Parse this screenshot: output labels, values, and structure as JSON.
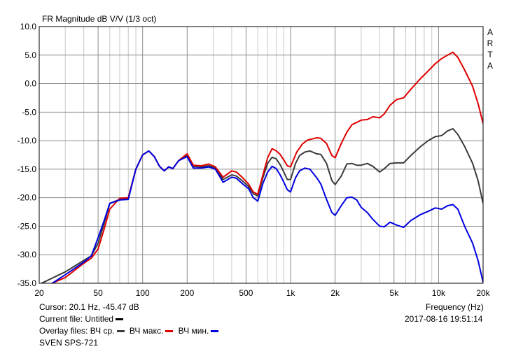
{
  "chart_data": {
    "type": "line",
    "title": "FR Magnitude dB V/V (1/3 oct)",
    "side_label": [
      "A",
      "R",
      "T",
      "A"
    ],
    "x_scale": "log",
    "xlim": [
      20,
      20000
    ],
    "ylim": [
      -35,
      10
    ],
    "grid": true,
    "x_ticks": [
      {
        "v": 20,
        "label": "20"
      },
      {
        "v": 50,
        "label": "50"
      },
      {
        "v": 100,
        "label": "100"
      },
      {
        "v": 200,
        "label": "200"
      },
      {
        "v": 500,
        "label": "500"
      },
      {
        "v": 1000,
        "label": "1k"
      },
      {
        "v": 2000,
        "label": "2k"
      },
      {
        "v": 5000,
        "label": "5k"
      },
      {
        "v": 10000,
        "label": "10k"
      },
      {
        "v": 20000,
        "label": "20k"
      }
    ],
    "y_ticks": [
      {
        "v": 10,
        "label": "10.0"
      },
      {
        "v": 5,
        "label": "5.0"
      },
      {
        "v": 0,
        "label": "0.0"
      },
      {
        "v": -5,
        "label": "-5.0"
      },
      {
        "v": -10,
        "label": "-10.0"
      },
      {
        "v": -15,
        "label": "-15.0"
      },
      {
        "v": -20,
        "label": "-20.0"
      },
      {
        "v": -25,
        "label": "-25.0"
      },
      {
        "v": -30,
        "label": "-30.0"
      },
      {
        "v": -35,
        "label": "-35.0"
      }
    ],
    "series": [
      {
        "name": "ВЧ ср.",
        "color": "#3c3c3c",
        "points": [
          [
            20,
            -35.2
          ],
          [
            30,
            -33
          ],
          [
            40,
            -31
          ],
          [
            45,
            -30.2
          ],
          [
            50,
            -28
          ],
          [
            55,
            -24.5
          ],
          [
            60,
            -21
          ],
          [
            70,
            -20.3
          ],
          [
            80,
            -20.1
          ],
          [
            90,
            -15
          ],
          [
            100,
            -12.5
          ],
          [
            110,
            -11.8
          ],
          [
            120,
            -12.8
          ],
          [
            130,
            -14.5
          ],
          [
            140,
            -15.3
          ],
          [
            150,
            -14.6
          ],
          [
            160,
            -14.9
          ],
          [
            175,
            -13.5
          ],
          [
            200,
            -12.6
          ],
          [
            220,
            -14.5
          ],
          [
            250,
            -14.6
          ],
          [
            280,
            -14.4
          ],
          [
            310,
            -14.8
          ],
          [
            350,
            -16.8
          ],
          [
            400,
            -16
          ],
          [
            430,
            -16.2
          ],
          [
            470,
            -17
          ],
          [
            520,
            -18
          ],
          [
            560,
            -19.3
          ],
          [
            600,
            -19.7
          ],
          [
            650,
            -16.5
          ],
          [
            700,
            -14
          ],
          [
            750,
            -12.9
          ],
          [
            800,
            -13.2
          ],
          [
            850,
            -14.2
          ],
          [
            900,
            -15.5
          ],
          [
            950,
            -16.8
          ],
          [
            1000,
            -16.8
          ],
          [
            1080,
            -14
          ],
          [
            1150,
            -12.6
          ],
          [
            1250,
            -12
          ],
          [
            1350,
            -11.8
          ],
          [
            1500,
            -12.3
          ],
          [
            1600,
            -12.4
          ],
          [
            1750,
            -14
          ],
          [
            1900,
            -17
          ],
          [
            2000,
            -17.7
          ],
          [
            2200,
            -16.2
          ],
          [
            2400,
            -14.1
          ],
          [
            2600,
            -14
          ],
          [
            2800,
            -14.3
          ],
          [
            3000,
            -14.3
          ],
          [
            3300,
            -14
          ],
          [
            3600,
            -14.5
          ],
          [
            4000,
            -15.5
          ],
          [
            4300,
            -14.9
          ],
          [
            4700,
            -14
          ],
          [
            5200,
            -13.9
          ],
          [
            5800,
            -13.9
          ],
          [
            6500,
            -12.6
          ],
          [
            7500,
            -11.1
          ],
          [
            8500,
            -10
          ],
          [
            9500,
            -9.3
          ],
          [
            10500,
            -9.1
          ],
          [
            11500,
            -8.3
          ],
          [
            12500,
            -7.9
          ],
          [
            13500,
            -8.9
          ],
          [
            15000,
            -11
          ],
          [
            17000,
            -14
          ],
          [
            18500,
            -17
          ],
          [
            20000,
            -21
          ]
        ]
      },
      {
        "name": "ВЧ макс.",
        "color": "#e00000",
        "points": [
          [
            20,
            -36
          ],
          [
            30,
            -34
          ],
          [
            40,
            -31.5
          ],
          [
            45,
            -30.6
          ],
          [
            50,
            -29
          ],
          [
            55,
            -25.5
          ],
          [
            60,
            -22
          ],
          [
            70,
            -20.1
          ],
          [
            80,
            -20
          ],
          [
            90,
            -15
          ],
          [
            100,
            -12.5
          ],
          [
            110,
            -11.8
          ],
          [
            120,
            -12.8
          ],
          [
            130,
            -14.5
          ],
          [
            140,
            -15.3
          ],
          [
            150,
            -14.6
          ],
          [
            160,
            -14.9
          ],
          [
            175,
            -13.5
          ],
          [
            200,
            -12.3
          ],
          [
            220,
            -14.3
          ],
          [
            250,
            -14.4
          ],
          [
            280,
            -14.1
          ],
          [
            310,
            -14.6
          ],
          [
            350,
            -16.4
          ],
          [
            400,
            -15.3
          ],
          [
            430,
            -15.5
          ],
          [
            470,
            -16.4
          ],
          [
            520,
            -17.6
          ],
          [
            560,
            -19
          ],
          [
            600,
            -19.4
          ],
          [
            650,
            -16
          ],
          [
            700,
            -13
          ],
          [
            750,
            -11.4
          ],
          [
            800,
            -11.8
          ],
          [
            850,
            -12.4
          ],
          [
            900,
            -13.4
          ],
          [
            950,
            -14.4
          ],
          [
            1000,
            -14.6
          ],
          [
            1100,
            -12
          ],
          [
            1200,
            -10.6
          ],
          [
            1300,
            -9.9
          ],
          [
            1400,
            -9.7
          ],
          [
            1500,
            -9.5
          ],
          [
            1600,
            -9.6
          ],
          [
            1750,
            -10.5
          ],
          [
            1900,
            -12.6
          ],
          [
            2000,
            -13
          ],
          [
            2200,
            -10.5
          ],
          [
            2400,
            -8.5
          ],
          [
            2600,
            -7.2
          ],
          [
            2800,
            -6.8
          ],
          [
            3000,
            -6.4
          ],
          [
            3300,
            -6.3
          ],
          [
            3600,
            -5.8
          ],
          [
            4000,
            -6
          ],
          [
            4300,
            -5.3
          ],
          [
            4700,
            -3.8
          ],
          [
            5200,
            -2.8
          ],
          [
            5800,
            -2.5
          ],
          [
            6500,
            -1
          ],
          [
            7500,
            0.8
          ],
          [
            8500,
            2.2
          ],
          [
            9500,
            3.5
          ],
          [
            10500,
            4.4
          ],
          [
            11500,
            5
          ],
          [
            12500,
            5.5
          ],
          [
            13500,
            4.6
          ],
          [
            15000,
            2.4
          ],
          [
            17000,
            -0.5
          ],
          [
            18500,
            -3.5
          ],
          [
            20000,
            -7
          ]
        ]
      },
      {
        "name": "ВЧ мин.",
        "color": "#0000e0",
        "points": [
          [
            20,
            -36.5
          ],
          [
            30,
            -33.5
          ],
          [
            40,
            -31.3
          ],
          [
            45,
            -30.2
          ],
          [
            50,
            -27
          ],
          [
            55,
            -24
          ],
          [
            60,
            -21
          ],
          [
            70,
            -20.4
          ],
          [
            80,
            -20.3
          ],
          [
            90,
            -15
          ],
          [
            100,
            -12.5
          ],
          [
            110,
            -11.8
          ],
          [
            120,
            -12.8
          ],
          [
            130,
            -14.5
          ],
          [
            140,
            -15.3
          ],
          [
            150,
            -14.6
          ],
          [
            160,
            -14.9
          ],
          [
            175,
            -13.5
          ],
          [
            200,
            -12.8
          ],
          [
            220,
            -14.8
          ],
          [
            250,
            -14.8
          ],
          [
            280,
            -14.6
          ],
          [
            310,
            -15
          ],
          [
            350,
            -17.3
          ],
          [
            400,
            -16.4
          ],
          [
            430,
            -16.6
          ],
          [
            470,
            -17.5
          ],
          [
            520,
            -18.4
          ],
          [
            560,
            -20
          ],
          [
            600,
            -20.6
          ],
          [
            650,
            -17.5
          ],
          [
            700,
            -15.5
          ],
          [
            750,
            -14.5
          ],
          [
            800,
            -14.9
          ],
          [
            850,
            -16
          ],
          [
            900,
            -17.3
          ],
          [
            950,
            -18.6
          ],
          [
            1000,
            -19
          ],
          [
            1080,
            -16.5
          ],
          [
            1150,
            -15.3
          ],
          [
            1250,
            -14.8
          ],
          [
            1350,
            -15
          ],
          [
            1500,
            -16.5
          ],
          [
            1600,
            -17.6
          ],
          [
            1750,
            -20.3
          ],
          [
            1900,
            -22.6
          ],
          [
            2000,
            -23.1
          ],
          [
            2200,
            -21.4
          ],
          [
            2400,
            -20
          ],
          [
            2600,
            -19.9
          ],
          [
            2800,
            -20.4
          ],
          [
            3000,
            -21.7
          ],
          [
            3300,
            -22.6
          ],
          [
            3600,
            -23.8
          ],
          [
            4000,
            -25
          ],
          [
            4300,
            -25.1
          ],
          [
            4700,
            -24.3
          ],
          [
            5200,
            -24.8
          ],
          [
            5800,
            -25.2
          ],
          [
            6500,
            -24
          ],
          [
            7500,
            -23
          ],
          [
            8500,
            -22.4
          ],
          [
            9500,
            -21.8
          ],
          [
            10500,
            -22
          ],
          [
            11500,
            -21.4
          ],
          [
            12500,
            -21.2
          ],
          [
            13500,
            -22
          ],
          [
            15000,
            -25
          ],
          [
            17000,
            -28
          ],
          [
            18500,
            -31
          ],
          [
            20000,
            -34.8
          ]
        ]
      }
    ]
  },
  "footer": {
    "cursor": "Cursor: 20.1 Hz, -45.47 dB",
    "frequency_label": "Frequency (Hz)",
    "current_file": "Current file: Untitled",
    "timestamp": "2017-08-16  19:51:14",
    "overlay_label": "Overlay files:",
    "overlays": [
      "ВЧ ср.",
      "ВЧ макс.",
      "ВЧ мин."
    ],
    "device": "SVEN SPS-721"
  }
}
